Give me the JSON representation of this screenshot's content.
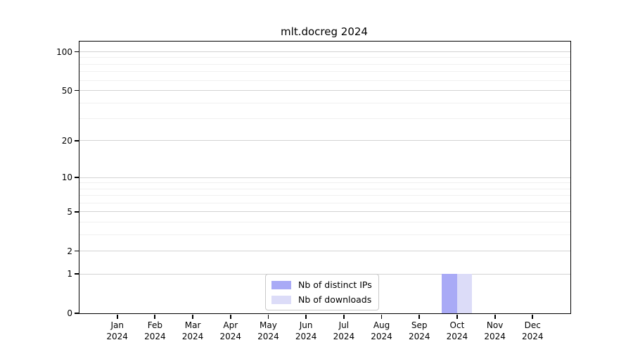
{
  "figure": {
    "title": "mlt.docreg 2024"
  },
  "chart_data": {
    "type": "bar",
    "title": "mlt.docreg 2024",
    "x_categories": [
      "Jan",
      "Feb",
      "Mar",
      "Apr",
      "May",
      "Jun",
      "Jul",
      "Aug",
      "Sep",
      "Oct",
      "Nov",
      "Dec"
    ],
    "x_year": "2024",
    "series": [
      {
        "name": "Nb of distinct IPs",
        "color": "#a9aaf6",
        "values": [
          0,
          0,
          0,
          0,
          0,
          0,
          0,
          0,
          0,
          1,
          0,
          0
        ]
      },
      {
        "name": "Nb of downloads",
        "color": "#dcdcf8",
        "values": [
          0,
          0,
          0,
          0,
          0,
          0,
          0,
          0,
          0,
          1,
          0,
          0
        ]
      }
    ],
    "y_scale": "log10(1+v)",
    "y_ticks": [
      0,
      1,
      2,
      5,
      10,
      20,
      50,
      100
    ],
    "y_minor_gridlines": [
      3,
      4,
      6,
      7,
      8,
      9,
      30,
      40,
      60,
      70,
      80,
      90
    ],
    "ylim": [
      0,
      120
    ],
    "grid": true,
    "legend_position": "lower center",
    "bar_width_fraction": 0.4
  },
  "colors": {
    "grid_major": "#d3d3d3",
    "grid_minor": "#f0f0f0",
    "spine": "#000000",
    "legend_border": "#c9c9c9",
    "text": "#000000"
  }
}
